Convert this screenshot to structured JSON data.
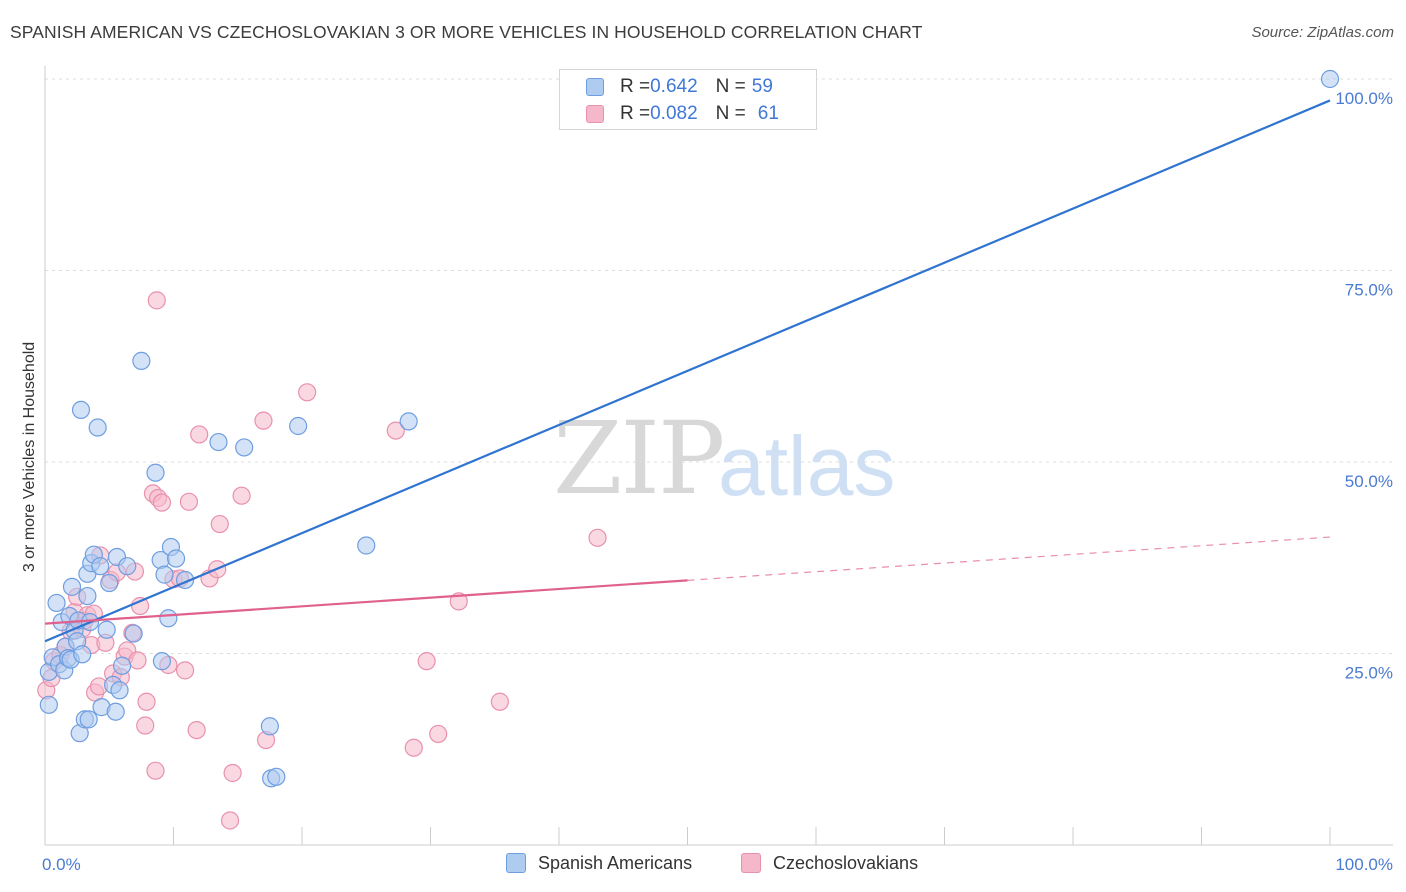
{
  "title": "SPANISH AMERICAN VS CZECHOSLOVAKIAN 3 OR MORE VEHICLES IN HOUSEHOLD CORRELATION CHART",
  "source": "Source: ZipAtlas.com",
  "watermark": {
    "zip": "ZIP",
    "atlas": "atlas"
  },
  "colors": {
    "blue_fill": "#aecbf0",
    "blue_stroke": "#6f9ee0",
    "blue_line": "#2f74d0",
    "pink_fill": "#f5b8cb",
    "pink_stroke": "#e891ae",
    "pink_line": "#e0608e",
    "grid": "#dddddd",
    "tick_label": "#4a7bd0"
  },
  "legend": {
    "rows": [
      {
        "r_label": "R = ",
        "r_value": "0.642",
        "n_label": "N = ",
        "n_value": "59"
      },
      {
        "r_label": "R = ",
        "r_value": "0.082",
        "n_label": "N = ",
        "n_value": "61"
      }
    ]
  },
  "bottom_legend": [
    "Spanish Americans",
    "Czechoslovakians"
  ],
  "chart_data": {
    "type": "scatter",
    "title": "SPANISH AMERICAN VS CZECHOSLOVAKIAN 3 OR MORE VEHICLES IN HOUSEHOLD CORRELATION CHART",
    "xlabel": "",
    "ylabel": "3 or more Vehicles in Household",
    "xlim": [
      0,
      100
    ],
    "ylim": [
      0,
      100
    ],
    "x_tick_labels": [
      "0.0%",
      "100.0%"
    ],
    "y_ticks": [
      25,
      50,
      75,
      100
    ],
    "y_tick_labels": [
      "25.0%",
      "50.0%",
      "75.0%",
      "100.0%"
    ],
    "grid": true,
    "legend_position": "top-center",
    "series": [
      {
        "name": "Spanish Americans",
        "r": 0.642,
        "n": 59,
        "trend": {
          "x": [
            0,
            100
          ],
          "y": [
            26.6,
            97.2
          ],
          "dashed_from": null
        },
        "points": [
          [
            0.3,
            22.6
          ],
          [
            0.3,
            18.3
          ],
          [
            0.6,
            24.5
          ],
          [
            0.9,
            31.6
          ],
          [
            1.1,
            23.6
          ],
          [
            1.3,
            29.1
          ],
          [
            1.5,
            22.8
          ],
          [
            1.6,
            25.9
          ],
          [
            1.8,
            24.4
          ],
          [
            1.9,
            29.9
          ],
          [
            2.0,
            24.2
          ],
          [
            2.1,
            33.7
          ],
          [
            2.3,
            28.0
          ],
          [
            2.5,
            26.6
          ],
          [
            2.6,
            29.3
          ],
          [
            2.7,
            14.6
          ],
          [
            2.8,
            56.8
          ],
          [
            2.9,
            24.9
          ],
          [
            3.1,
            16.4
          ],
          [
            3.3,
            35.4
          ],
          [
            3.3,
            32.5
          ],
          [
            3.4,
            16.4
          ],
          [
            3.5,
            29.1
          ],
          [
            3.6,
            36.8
          ],
          [
            3.8,
            37.9
          ],
          [
            4.1,
            54.5
          ],
          [
            4.3,
            36.4
          ],
          [
            4.4,
            18.0
          ],
          [
            4.8,
            28.1
          ],
          [
            5.0,
            34.2
          ],
          [
            5.3,
            20.9
          ],
          [
            5.5,
            17.4
          ],
          [
            5.6,
            37.6
          ],
          [
            5.8,
            20.2
          ],
          [
            6.0,
            23.4
          ],
          [
            6.4,
            36.4
          ],
          [
            6.9,
            27.6
          ],
          [
            7.5,
            63.2
          ],
          [
            8.6,
            48.6
          ],
          [
            9.0,
            37.2
          ],
          [
            9.1,
            24.0
          ],
          [
            9.3,
            35.3
          ],
          [
            9.6,
            29.6
          ],
          [
            9.8,
            38.9
          ],
          [
            10.2,
            37.4
          ],
          [
            10.9,
            34.6
          ],
          [
            13.5,
            52.6
          ],
          [
            15.5,
            51.9
          ],
          [
            17.5,
            15.5
          ],
          [
            17.6,
            8.7
          ],
          [
            18.0,
            8.9
          ],
          [
            19.7,
            54.7
          ],
          [
            25.0,
            39.1
          ],
          [
            28.3,
            55.3
          ],
          [
            100.0,
            100.0
          ]
        ]
      },
      {
        "name": "Czechoslovakians",
        "r": 0.082,
        "n": 61,
        "trend": {
          "x": [
            0,
            100
          ],
          "y": [
            28.9,
            40.2
          ],
          "dashed_from": 50
        },
        "points": [
          [
            0.1,
            20.2
          ],
          [
            0.5,
            21.8
          ],
          [
            0.7,
            24.0
          ],
          [
            1.2,
            24.8
          ],
          [
            1.6,
            25.9
          ],
          [
            2.0,
            27.9
          ],
          [
            2.3,
            30.4
          ],
          [
            2.5,
            32.4
          ],
          [
            2.9,
            28.2
          ],
          [
            3.1,
            29.3
          ],
          [
            3.3,
            30.0
          ],
          [
            3.6,
            26.1
          ],
          [
            3.8,
            30.2
          ],
          [
            3.9,
            19.9
          ],
          [
            4.2,
            20.7
          ],
          [
            4.3,
            37.8
          ],
          [
            4.7,
            26.4
          ],
          [
            5.1,
            34.6
          ],
          [
            5.3,
            22.4
          ],
          [
            5.6,
            35.6
          ],
          [
            5.9,
            21.9
          ],
          [
            6.2,
            24.6
          ],
          [
            6.4,
            25.4
          ],
          [
            6.8,
            27.7
          ],
          [
            7.0,
            35.7
          ],
          [
            7.2,
            24.1
          ],
          [
            7.4,
            31.2
          ],
          [
            7.8,
            15.6
          ],
          [
            7.9,
            18.7
          ],
          [
            8.4,
            45.9
          ],
          [
            8.6,
            9.7
          ],
          [
            8.7,
            71.1
          ],
          [
            8.8,
            45.3
          ],
          [
            9.1,
            44.7
          ],
          [
            9.6,
            23.5
          ],
          [
            10.0,
            34.7
          ],
          [
            10.5,
            34.8
          ],
          [
            10.9,
            22.8
          ],
          [
            11.2,
            44.8
          ],
          [
            11.8,
            15.0
          ],
          [
            12.0,
            53.6
          ],
          [
            12.8,
            34.8
          ],
          [
            13.4,
            36.0
          ],
          [
            13.6,
            41.9
          ],
          [
            14.4,
            3.2
          ],
          [
            14.6,
            9.4
          ],
          [
            15.3,
            45.6
          ],
          [
            17.0,
            55.4
          ],
          [
            17.2,
            13.7
          ],
          [
            20.4,
            59.1
          ],
          [
            27.3,
            54.1
          ],
          [
            28.7,
            12.7
          ],
          [
            29.7,
            24.0
          ],
          [
            30.6,
            14.5
          ],
          [
            32.2,
            31.8
          ],
          [
            35.4,
            18.7
          ],
          [
            43.0,
            40.1
          ]
        ]
      }
    ]
  }
}
